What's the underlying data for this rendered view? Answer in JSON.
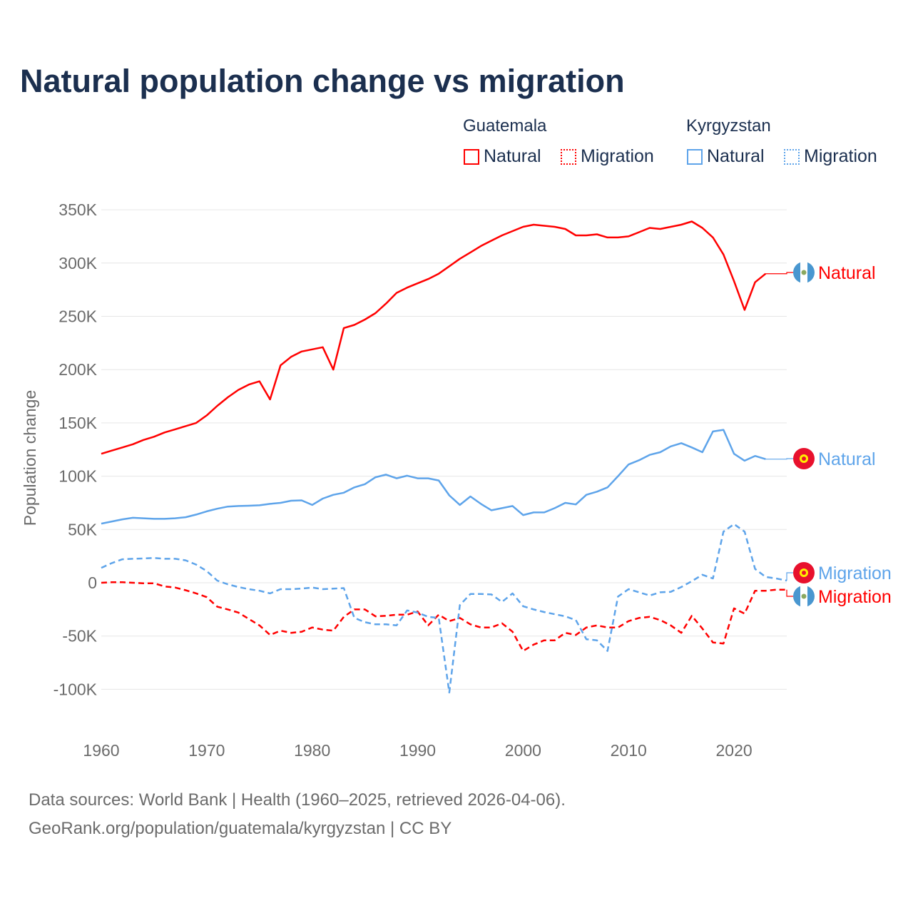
{
  "colors": {
    "guatemala": "#ff0000",
    "kyrgyzstan": "#5ea4ea",
    "title": "#1b2f4f",
    "grid": "#e6e6e6",
    "axis_text": "#6b6b6b"
  },
  "legend": {
    "groups": [
      {
        "name": "Guatemala",
        "items": [
          {
            "label": "Natural",
            "style": "solid"
          },
          {
            "label": "Migration",
            "style": "dotted"
          }
        ]
      },
      {
        "name": "Kyrgyzstan",
        "items": [
          {
            "label": "Natural",
            "style": "solid"
          },
          {
            "label": "Migration",
            "style": "dotted"
          }
        ]
      }
    ]
  },
  "chart_data": {
    "type": "line",
    "title": "Natural population change vs migration",
    "xlabel": "",
    "ylabel": "Population change",
    "xlim": [
      1960,
      2025
    ],
    "ylim": [
      -100000,
      350000
    ],
    "xticks": [
      1960,
      1970,
      1980,
      1990,
      2000,
      2010,
      2020
    ],
    "xtick_labels": [
      "1960",
      "1970",
      "1980",
      "1990",
      "2000",
      "2010",
      "2020"
    ],
    "yticks": [
      -100000,
      -50000,
      0,
      50000,
      100000,
      150000,
      200000,
      250000,
      300000,
      350000
    ],
    "ytick_labels": [
      "-100K",
      "-50K",
      "0",
      "50K",
      "100K",
      "150K",
      "200K",
      "250K",
      "300K",
      "350K"
    ],
    "grid": true,
    "legend_position": "top-right",
    "series": [
      {
        "name": "Guatemala Natural",
        "country": "guatemala",
        "dash": "solid",
        "end_label": "Natural",
        "start_year": 1960,
        "values": [
          121,
          124,
          127,
          130,
          134,
          137,
          141,
          144,
          147,
          150,
          157,
          166,
          174,
          181,
          186,
          189,
          172,
          204,
          212,
          217,
          219,
          221,
          200,
          239,
          242,
          247,
          253,
          262,
          272,
          277,
          281,
          285,
          290,
          297,
          304,
          310,
          316,
          321,
          326,
          330,
          334,
          336,
          335,
          334,
          332,
          326,
          326,
          327,
          324,
          324,
          325,
          329,
          333,
          332,
          334,
          336,
          339,
          333,
          324,
          308,
          283,
          256,
          282,
          290
        ]
      },
      {
        "name": "Guatemala Migration",
        "country": "guatemala",
        "dash": "dashed",
        "end_label": "Migration",
        "start_year": 1960,
        "values": [
          0,
          0.5,
          0.5,
          0,
          -0.5,
          -0.5,
          -3.5,
          -4.5,
          -7,
          -10,
          -13.5,
          -22.5,
          -25,
          -28,
          -34,
          -40,
          -49,
          -45,
          -47,
          -46,
          -42,
          -44,
          -45,
          -32,
          -25,
          -25,
          -31.5,
          -31,
          -30,
          -30,
          -27,
          -40,
          -30,
          -36,
          -33,
          -39,
          -42,
          -42,
          -38,
          -46,
          -64,
          -58,
          -54,
          -54,
          -47,
          -49,
          -42,
          -40,
          -42,
          -42,
          -36,
          -33,
          -32,
          -35,
          -40,
          -47,
          -31,
          -43,
          -56,
          -57,
          -24,
          -29,
          -7.5,
          -7.5,
          -6.5,
          -6.5
        ]
      },
      {
        "name": "Kyrgyzstan Natural",
        "country": "kyrgyzstan",
        "dash": "solid",
        "end_label": "Natural",
        "start_year": 1960,
        "values": [
          55.5,
          57.5,
          59.5,
          61,
          60.5,
          60,
          60,
          60.5,
          61.5,
          64,
          67,
          69.5,
          71.5,
          72,
          72.3,
          72.7,
          74,
          75,
          77,
          77.3,
          73,
          79,
          82.5,
          84.5,
          89.5,
          92.5,
          99,
          101.5,
          98,
          100.5,
          98,
          98,
          96,
          82,
          73,
          81,
          74,
          68,
          70,
          72,
          63.5,
          66,
          66,
          70,
          75,
          73.5,
          82.5,
          85.5,
          89.5,
          100,
          111,
          115,
          120,
          122.5,
          128,
          131,
          127,
          122.5,
          142,
          143.5,
          121,
          114.5,
          119,
          116
        ]
      },
      {
        "name": "Kyrgyzstan Migration",
        "country": "kyrgyzstan",
        "dash": "dashed",
        "end_label": "Migration",
        "start_year": 1960,
        "values": [
          14,
          18.5,
          22,
          22.5,
          22.8,
          23.2,
          22.5,
          22.5,
          21,
          17,
          11,
          2,
          -1.5,
          -4,
          -6,
          -7.5,
          -10,
          -6,
          -6,
          -5.5,
          -4.5,
          -6,
          -5.5,
          -5,
          -33,
          -37,
          -39,
          -39,
          -40,
          -26,
          -28,
          -32,
          -33,
          -103,
          -21,
          -10.5,
          -10.5,
          -11,
          -18,
          -10,
          -22,
          -25,
          -27.5,
          -29.5,
          -31.5,
          -35,
          -53,
          -54,
          -64,
          -13,
          -6,
          -9,
          -12,
          -9,
          -8.5,
          -4,
          1.5,
          7.5,
          4,
          48,
          55,
          48,
          13,
          5.5,
          4,
          2
        ]
      }
    ],
    "value_unit": "thousands"
  },
  "footer": {
    "line1": "Data sources: World Bank | Health (1960–2025, retrieved 2026-04-06).",
    "line2": "GeoRank.org/population/guatemala/kyrgyzstan | CC BY"
  }
}
